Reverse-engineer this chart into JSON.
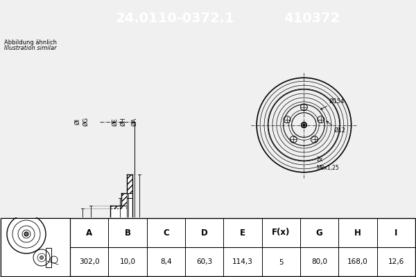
{
  "title_part1": "24.0110-0372.1",
  "title_part2": "410372",
  "title_bg": "#0000cc",
  "title_fg": "white",
  "subtitle1": "Abbildung ähnlich",
  "subtitle2": "Illustration similar",
  "table_headers": [
    "A",
    "B",
    "C",
    "D",
    "E",
    "F(x)",
    "G",
    "H",
    "I"
  ],
  "table_values": [
    "302,0",
    "10,0",
    "8,4",
    "60,3",
    "114,3",
    "5",
    "80,0",
    "168,0",
    "12,6"
  ],
  "bg_color": "#f0f0f0",
  "white": "#ffffff",
  "line_color": "#000000",
  "hatch_color": "#555555",
  "dim_color": "#000000",
  "axis_color": "#000000"
}
